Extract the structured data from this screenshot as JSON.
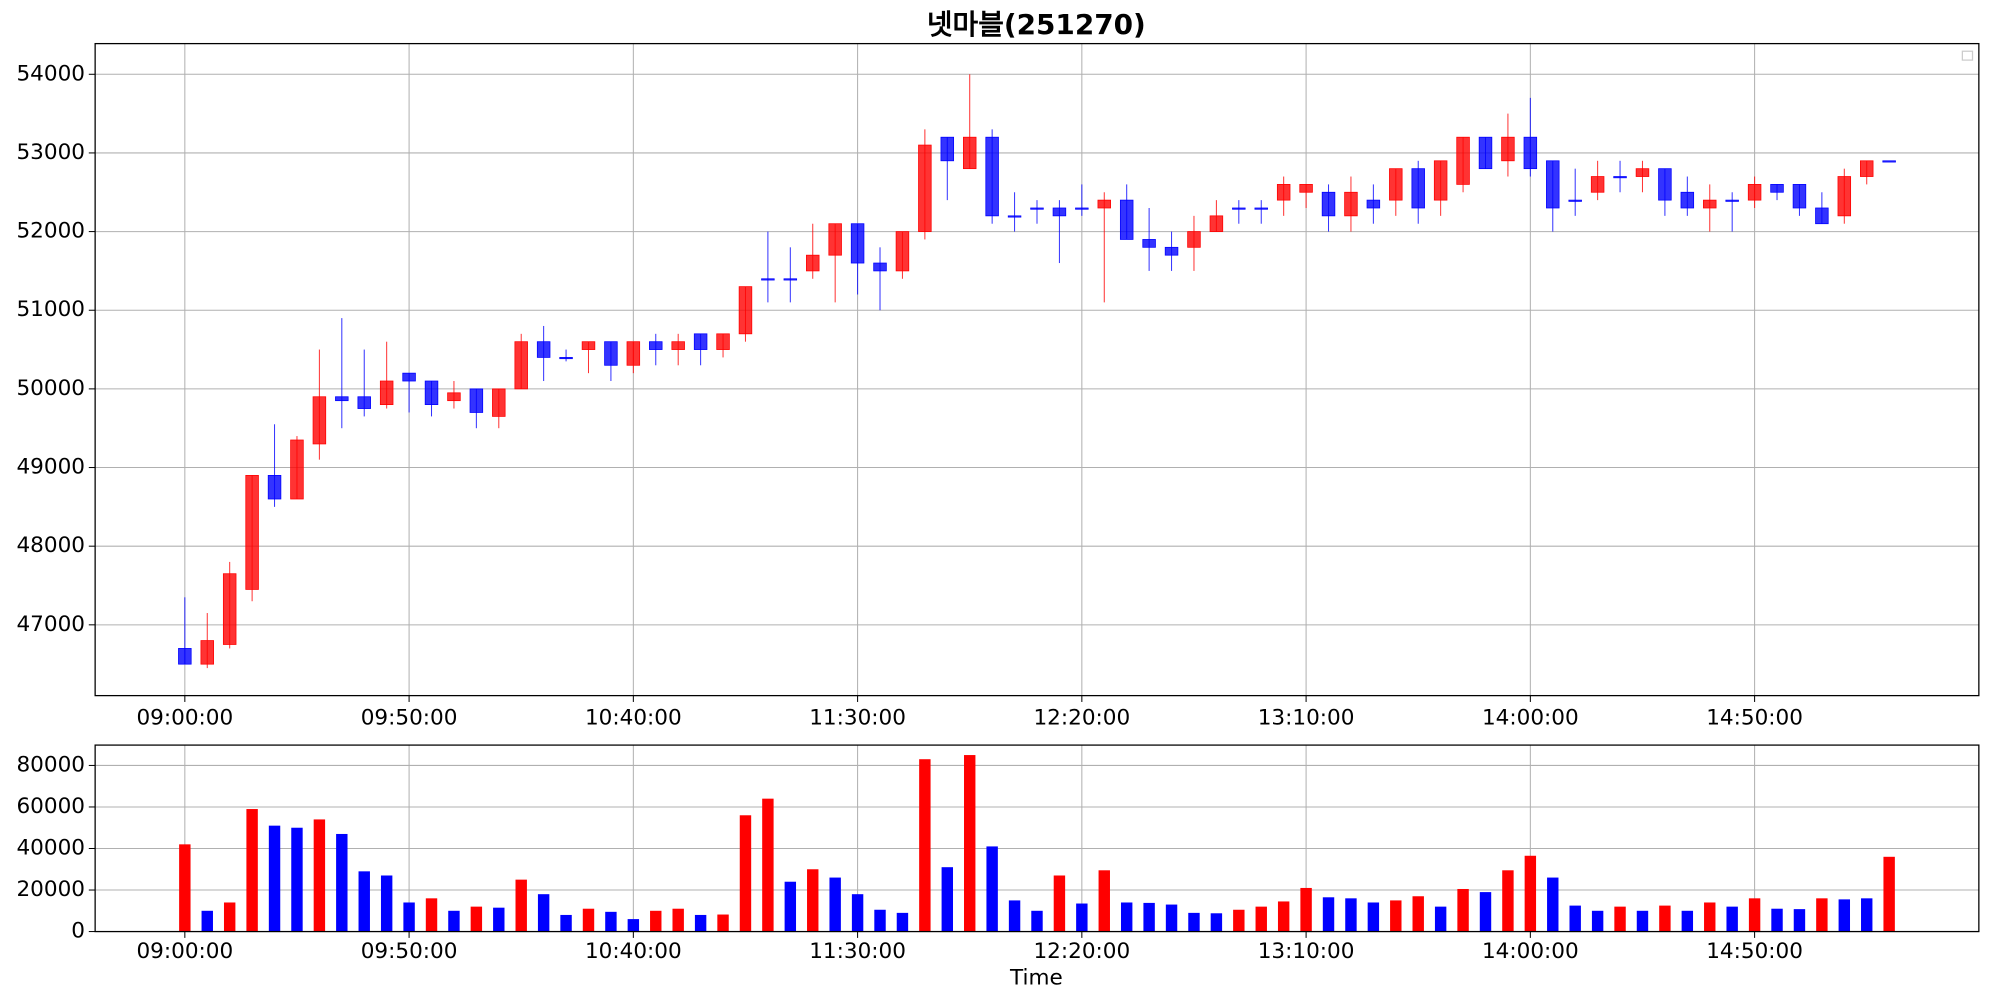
{
  "chart_data": [
    {
      "type": "candlestick",
      "title": "넷마블(251270)",
      "up_color": "#ff0000",
      "down_color": "#0000ff",
      "grid": true,
      "xlim": [
        "08:40:00",
        "15:40:00"
      ],
      "xticks": [
        "09:00:00",
        "09:50:00",
        "10:40:00",
        "11:30:00",
        "12:20:00",
        "13:10:00",
        "14:00:00",
        "14:50:00"
      ],
      "ylim": [
        46100,
        54390
      ],
      "yticks": [
        47000,
        48000,
        49000,
        50000,
        51000,
        52000,
        53000,
        54000
      ],
      "x": [
        "09:00:00",
        "09:05:00",
        "09:10:00",
        "09:15:00",
        "09:20:00",
        "09:25:00",
        "09:30:00",
        "09:35:00",
        "09:40:00",
        "09:45:00",
        "09:50:00",
        "09:55:00",
        "10:00:00",
        "10:05:00",
        "10:10:00",
        "10:15:00",
        "10:20:00",
        "10:25:00",
        "10:30:00",
        "10:35:00",
        "10:40:00",
        "10:45:00",
        "10:50:00",
        "10:55:00",
        "11:00:00",
        "11:05:00",
        "11:10:00",
        "11:15:00",
        "11:20:00",
        "11:25:00",
        "11:30:00",
        "11:35:00",
        "11:40:00",
        "11:45:00",
        "11:50:00",
        "11:55:00",
        "12:00:00",
        "12:05:00",
        "12:10:00",
        "12:15:00",
        "12:20:00",
        "12:25:00",
        "12:30:00",
        "12:35:00",
        "12:40:00",
        "12:45:00",
        "12:50:00",
        "12:55:00",
        "13:00:00",
        "13:05:00",
        "13:10:00",
        "13:15:00",
        "13:20:00",
        "13:25:00",
        "13:30:00",
        "13:35:00",
        "13:40:00",
        "13:45:00",
        "13:50:00",
        "13:55:00",
        "14:00:00",
        "14:05:00",
        "14:10:00",
        "14:15:00",
        "14:20:00",
        "14:25:00",
        "14:30:00",
        "14:35:00",
        "14:40:00",
        "14:45:00",
        "14:50:00",
        "14:55:00",
        "15:00:00",
        "15:05:00",
        "15:10:00",
        "15:15:00",
        "15:20:00"
      ],
      "open": [
        46700,
        46500,
        46750,
        47450,
        48900,
        48600,
        49300,
        49900,
        49900,
        49800,
        50200,
        50100,
        49850,
        50000,
        49650,
        50000,
        50600,
        50400,
        50500,
        50600,
        50300,
        50600,
        50500,
        50700,
        50500,
        50700,
        51400,
        51400,
        51500,
        51700,
        52100,
        51600,
        51500,
        52000,
        53200,
        52800,
        53200,
        52200,
        52300,
        52300,
        52300,
        52300,
        52400,
        51900,
        51800,
        51800,
        52000,
        52300,
        52300,
        52400,
        52500,
        52500,
        52200,
        52400,
        52400,
        52800,
        52400,
        52600,
        53200,
        52900,
        53200,
        52900,
        52400,
        52500,
        52700,
        52700,
        52800,
        52500,
        52300,
        52400,
        52400,
        52600,
        52600,
        52300,
        52200,
        52700,
        52900
      ],
      "high": [
        47350,
        47150,
        47800,
        48900,
        49550,
        49400,
        50500,
        50900,
        50500,
        50600,
        50200,
        50100,
        50100,
        50000,
        50000,
        50700,
        50800,
        50500,
        50600,
        50600,
        50600,
        50700,
        50700,
        50700,
        50700,
        51300,
        52000,
        51800,
        52100,
        52100,
        52100,
        51800,
        52000,
        53300,
        53200,
        54000,
        53300,
        52500,
        52400,
        52400,
        52600,
        52500,
        52600,
        52300,
        52000,
        52200,
        52400,
        52400,
        52400,
        52700,
        52600,
        52600,
        52700,
        52600,
        52800,
        52900,
        52900,
        53200,
        53200,
        53500,
        53700,
        52900,
        52800,
        52900,
        52900,
        52900,
        52800,
        52700,
        52600,
        52500,
        52700,
        52600,
        52600,
        52500,
        52800,
        52900,
        52900
      ],
      "low": [
        46500,
        46450,
        46700,
        47300,
        48500,
        48600,
        49100,
        49500,
        49650,
        49750,
        49700,
        49650,
        49750,
        49500,
        49500,
        50000,
        50100,
        50350,
        50200,
        50100,
        50200,
        50300,
        50300,
        50300,
        50400,
        50600,
        51100,
        51100,
        51400,
        51100,
        51200,
        51000,
        51400,
        51900,
        52400,
        52800,
        52100,
        52000,
        52100,
        51600,
        52200,
        51100,
        51900,
        51500,
        51500,
        51500,
        52000,
        52100,
        52100,
        52200,
        52300,
        52000,
        52000,
        52100,
        52200,
        52100,
        52200,
        52500,
        52800,
        52700,
        52700,
        52000,
        52200,
        52400,
        52500,
        52500,
        52200,
        52200,
        52000,
        52000,
        52300,
        52400,
        52200,
        52100,
        52100,
        52600,
        52900
      ],
      "close": [
        46500,
        46800,
        47650,
        48900,
        48600,
        49350,
        49900,
        49850,
        49750,
        50100,
        50100,
        49800,
        49950,
        49700,
        50000,
        50600,
        50400,
        50400,
        50600,
        50300,
        50600,
        50500,
        50600,
        50500,
        50700,
        51300,
        51400,
        51400,
        51700,
        52100,
        51600,
        51500,
        52000,
        53100,
        52900,
        53200,
        52200,
        52200,
        52300,
        52200,
        52300,
        52400,
        51900,
        51800,
        51700,
        52000,
        52200,
        52300,
        52300,
        52600,
        52600,
        52200,
        52500,
        52300,
        52800,
        52300,
        52900,
        53200,
        52800,
        53200,
        52800,
        52300,
        52400,
        52700,
        52700,
        52800,
        52400,
        52300,
        52400,
        52400,
        52600,
        52500,
        52300,
        52100,
        52700,
        52900,
        52900
      ]
    },
    {
      "type": "bar",
      "x_label": "Time",
      "grid": true,
      "xlim": [
        "08:40:00",
        "15:40:00"
      ],
      "xticks": [
        "09:00:00",
        "09:50:00",
        "10:40:00",
        "11:30:00",
        "12:20:00",
        "13:10:00",
        "14:00:00",
        "14:50:00"
      ],
      "ylim": [
        0,
        89800
      ],
      "yticks": [
        0,
        20000,
        40000,
        60000,
        80000
      ],
      "x": [
        "09:00:00",
        "09:05:00",
        "09:10:00",
        "09:15:00",
        "09:20:00",
        "09:25:00",
        "09:30:00",
        "09:35:00",
        "09:40:00",
        "09:45:00",
        "09:50:00",
        "09:55:00",
        "10:00:00",
        "10:05:00",
        "10:10:00",
        "10:15:00",
        "10:20:00",
        "10:25:00",
        "10:30:00",
        "10:35:00",
        "10:40:00",
        "10:45:00",
        "10:50:00",
        "10:55:00",
        "11:00:00",
        "11:05:00",
        "11:10:00",
        "11:15:00",
        "11:20:00",
        "11:25:00",
        "11:30:00",
        "11:35:00",
        "11:40:00",
        "11:45:00",
        "11:50:00",
        "11:55:00",
        "12:00:00",
        "12:05:00",
        "12:10:00",
        "12:15:00",
        "12:20:00",
        "12:25:00",
        "12:30:00",
        "12:35:00",
        "12:40:00",
        "12:45:00",
        "12:50:00",
        "12:55:00",
        "13:00:00",
        "13:05:00",
        "13:10:00",
        "13:15:00",
        "13:20:00",
        "13:25:00",
        "13:30:00",
        "13:35:00",
        "13:40:00",
        "13:45:00",
        "13:50:00",
        "13:55:00",
        "14:00:00",
        "14:05:00",
        "14:10:00",
        "14:15:00",
        "14:20:00",
        "14:25:00",
        "14:30:00",
        "14:35:00",
        "14:40:00",
        "14:45:00",
        "14:50:00",
        "14:55:00",
        "15:00:00",
        "15:05:00",
        "15:10:00",
        "15:15:00",
        "15:20:00"
      ],
      "values": [
        42000,
        10000,
        14000,
        59000,
        51000,
        50000,
        54000,
        47000,
        29000,
        27000,
        14000,
        16000,
        10000,
        12000,
        11500,
        25000,
        18000,
        8000,
        11000,
        9500,
        6000,
        10000,
        11000,
        8000,
        8200,
        56000,
        64000,
        24000,
        30000,
        26000,
        18000,
        10500,
        9000,
        83000,
        31000,
        85000,
        41000,
        15000,
        10000,
        27000,
        13500,
        29500,
        14000,
        13800,
        13000,
        9000,
        8800,
        10500,
        12000,
        14500,
        21000,
        16500,
        16000,
        14000,
        15000,
        17000,
        12000,
        20500,
        19000,
        29500,
        36500,
        26000,
        12500,
        10000,
        12000,
        10000,
        12500,
        10000,
        14000,
        12000,
        16000,
        11000,
        10800,
        16000,
        15500,
        16000,
        36000
      ],
      "colors": [
        "#ff0000",
        "#0000ff",
        "#ff0000",
        "#ff0000",
        "#0000ff",
        "#0000ff",
        "#ff0000",
        "#0000ff",
        "#0000ff",
        "#0000ff",
        "#0000ff",
        "#ff0000",
        "#0000ff",
        "#ff0000",
        "#0000ff",
        "#ff0000",
        "#0000ff",
        "#0000ff",
        "#ff0000",
        "#0000ff",
        "#0000ff",
        "#ff0000",
        "#ff0000",
        "#0000ff",
        "#ff0000",
        "#ff0000",
        "#ff0000",
        "#0000ff",
        "#ff0000",
        "#0000ff",
        "#0000ff",
        "#0000ff",
        "#0000ff",
        "#ff0000",
        "#0000ff",
        "#ff0000",
        "#0000ff",
        "#0000ff",
        "#0000ff",
        "#ff0000",
        "#0000ff",
        "#ff0000",
        "#0000ff",
        "#0000ff",
        "#0000ff",
        "#0000ff",
        "#0000ff",
        "#ff0000",
        "#ff0000",
        "#ff0000",
        "#ff0000",
        "#0000ff",
        "#0000ff",
        "#0000ff",
        "#ff0000",
        "#ff0000",
        "#0000ff",
        "#ff0000",
        "#0000ff",
        "#ff0000",
        "#ff0000",
        "#0000ff",
        "#0000ff",
        "#0000ff",
        "#ff0000",
        "#0000ff",
        "#ff0000",
        "#0000ff",
        "#ff0000",
        "#0000ff",
        "#ff0000",
        "#0000ff",
        "#0000ff",
        "#ff0000",
        "#0000ff",
        "#0000ff",
        "#ff0000"
      ]
    }
  ]
}
